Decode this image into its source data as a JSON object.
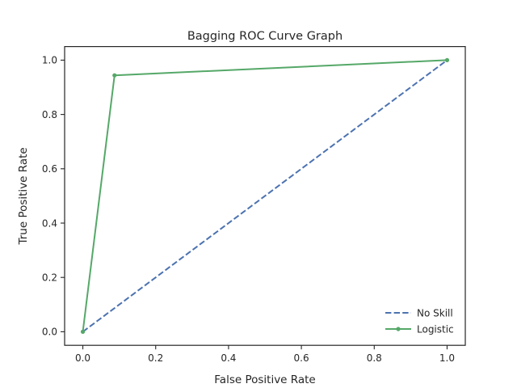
{
  "chart_data": {
    "type": "line",
    "title": "Bagging ROC Curve Graph",
    "xlabel": "False Positive Rate",
    "ylabel": "True Positive Rate",
    "xlim": [
      -0.05,
      1.05
    ],
    "ylim": [
      -0.05,
      1.05
    ],
    "x_ticks": [
      0.0,
      0.2,
      0.4,
      0.6,
      0.8,
      1.0
    ],
    "x_tick_labels": [
      "0.0",
      "0.2",
      "0.4",
      "0.6",
      "0.8",
      "1.0"
    ],
    "y_ticks": [
      0.0,
      0.2,
      0.4,
      0.6,
      0.8,
      1.0
    ],
    "y_tick_labels": [
      "0.0",
      "0.2",
      "0.4",
      "0.6",
      "0.8",
      "1.0"
    ],
    "grid": false,
    "legend_position": "lower-right",
    "series": [
      {
        "name": "No Skill",
        "style": "dashed",
        "marker": "none",
        "color": "#4c72b0",
        "x": [
          0.0,
          1.0
        ],
        "y": [
          0.0,
          1.0
        ]
      },
      {
        "name": "Logistic",
        "style": "solid",
        "marker": "dot",
        "color": "#55a868",
        "x": [
          0.0,
          0.087,
          1.0
        ],
        "y": [
          0.0,
          0.944,
          1.0
        ]
      }
    ]
  }
}
